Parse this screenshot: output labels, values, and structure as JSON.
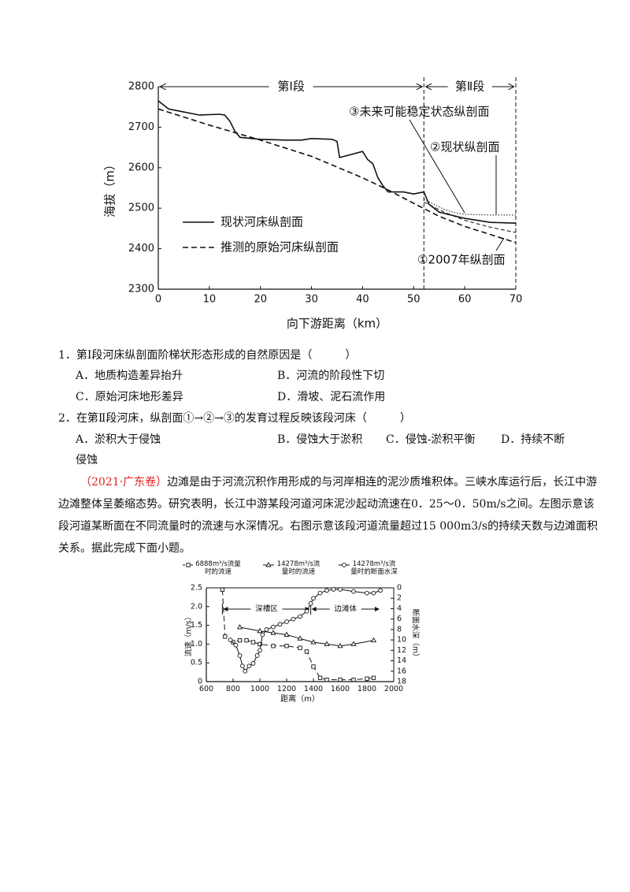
{
  "chart_data": [
    {
      "type": "line",
      "x_label": "向下游距离（km）",
      "y_label": "海拔（m）",
      "xlim": [
        0,
        70
      ],
      "xticks": [
        0,
        10,
        20,
        30,
        40,
        50,
        60,
        70
      ],
      "ylim": [
        2300,
        2800
      ],
      "yticks": [
        2300,
        2400,
        2500,
        2600,
        2700,
        2800
      ],
      "sections": [
        {
          "label": "第Ⅰ段",
          "from": 0,
          "to": 52
        },
        {
          "label": "第Ⅱ段",
          "from": 52,
          "to": 70
        }
      ],
      "series": [
        {
          "name": "现状河床纵剖面",
          "style": "solid",
          "color": "#111",
          "legend": true,
          "x": [
            0,
            1,
            2,
            4,
            6,
            8,
            12,
            13,
            14,
            15,
            16,
            20,
            25,
            28,
            30,
            34,
            35,
            35.5,
            37,
            40,
            41,
            42,
            43,
            44,
            45,
            48,
            50,
            52,
            53,
            55,
            60,
            65,
            70
          ],
          "values": [
            2765,
            2755,
            2745,
            2740,
            2735,
            2730,
            2732,
            2730,
            2715,
            2690,
            2675,
            2670,
            2668,
            2668,
            2672,
            2670,
            2665,
            2625,
            2630,
            2640,
            2620,
            2610,
            2575,
            2555,
            2540,
            2540,
            2535,
            2540,
            2510,
            2490,
            2475,
            2465,
            2463
          ]
        },
        {
          "name": "推测的原始河床纵剖面",
          "style": "dashed",
          "color": "#111",
          "legend": true,
          "x": [
            0,
            10,
            20,
            30,
            40,
            45,
            50,
            55,
            60,
            65,
            70
          ],
          "values": [
            2745,
            2705,
            2668,
            2628,
            2575,
            2545,
            2512,
            2480,
            2455,
            2435,
            2415
          ]
        },
        {
          "name": "①2007年纵剖面",
          "style": "thin-dashed",
          "color": "#111",
          "legend": false,
          "x": [
            52,
            56,
            60,
            65,
            70
          ],
          "values": [
            2515,
            2490,
            2470,
            2453,
            2440
          ]
        },
        {
          "name": "③未来可能稳定状态纵剖面",
          "style": "dotted",
          "color": "#111",
          "legend": false,
          "x": [
            52,
            56,
            58,
            60,
            65,
            70
          ],
          "values": [
            2522,
            2497,
            2489,
            2485,
            2483,
            2483
          ]
        }
      ],
      "annotations": [
        "②现状纵剖面"
      ]
    },
    {
      "type": "line",
      "x_label": "距离（m）",
      "y_label": "流速（m/s）",
      "y2_label": "断面水深（m）",
      "xlim": [
        600,
        2000
      ],
      "xticks": [
        600,
        800,
        1000,
        1200,
        1400,
        1600,
        1800,
        2000
      ],
      "ylim": [
        0,
        2.5
      ],
      "yticks": [
        0,
        0.5,
        {
          "value": 1,
          "label": "1.0"
        },
        1.5,
        {
          "value": 2,
          "label": "2.0"
        },
        2.5
      ],
      "y2lim": [
        0,
        18
      ],
      "y2ticks": [
        0,
        2,
        4,
        6,
        8,
        10,
        12,
        14,
        16,
        18
      ],
      "y2_inverted": true,
      "series": [
        {
          "name": "6888m³/s流量时的流速",
          "style": "dashed",
          "marker": "square",
          "color": "#111",
          "x": [
            720,
            740,
            800,
            850,
            900,
            950,
            1000,
            1100,
            1200,
            1300,
            1350,
            1400,
            1450,
            1500,
            1600,
            1700,
            1800,
            1850
          ],
          "values": [
            2.45,
            1.2,
            1.05,
            1.1,
            1.1,
            1.05,
            1.0,
            0.95,
            0.95,
            0.9,
            0.8,
            0.4,
            0.1,
            0.05,
            0.05,
            0.05,
            0.08,
            0.1
          ]
        },
        {
          "name": "14278m³/s流量时的流速",
          "style": "solid",
          "marker": "triangle",
          "color": "#111",
          "x": [
            850,
            1000,
            1100,
            1200,
            1300,
            1400,
            1500,
            1600,
            1700,
            1850
          ],
          "values": [
            1.45,
            1.35,
            1.3,
            1.25,
            1.15,
            1.05,
            1.0,
            0.95,
            1.0,
            1.1
          ]
        },
        {
          "name": "14278m³/s流量时的断面水深",
          "style": "solid",
          "marker": "circle",
          "color": "#111",
          "axis": "y2",
          "x": [
            780,
            820,
            850,
            870,
            890,
            920,
            950,
            980,
            1000,
            1020,
            1050,
            1100,
            1150,
            1200,
            1250,
            1300,
            1350,
            1380,
            1400,
            1450,
            1500,
            1550,
            1600,
            1700,
            1800,
            1850,
            1900
          ],
          "values": [
            10,
            11,
            13,
            15,
            16,
            15,
            14.5,
            13,
            12,
            9,
            8,
            7.5,
            7,
            6.5,
            6,
            5.5,
            4.5,
            3,
            2,
            1,
            0.5,
            0.3,
            0.3,
            0.7,
            1,
            1,
            0.5
          ]
        }
      ],
      "zones": [
        {
          "label": "深槽区",
          "from": 720,
          "to": 1380
        },
        {
          "label": "边滩体",
          "from": 1380,
          "to": 1900
        }
      ]
    }
  ],
  "questions": [
    {
      "stem": "1．第Ⅰ段河床纵剖面阶梯状形态形成的自然原因是（　　　）",
      "options": [
        "A．地质构造差异抬升",
        "B．河流的阶段性下切",
        "C．原始河床地形差异",
        "D．滑坡、泥石流作用"
      ]
    },
    {
      "stem": "2．在第Ⅱ段河床，纵剖面①→②→③的发育过程反映该段河床（　　　）",
      "options": [
        "A．淤积大于侵蚀",
        "B．侵蚀大于淤积",
        "C．侵蚀-淤积平衡",
        "D．持续不断侵蚀"
      ]
    }
  ],
  "passage": {
    "source": "（2021·广东卷）",
    "text": "边滩是由于河流沉积作用形成的与河岸相连的泥沙质堆积体。三峡水库运行后，长江中游边滩整体呈萎缩态势。研究表明，长江中游某段河道河床泥沙起动流速在0．25～0．50m/s之间。左图示意该段河道某断面在不同流量时的流速与水深情况。右图示意该段河道流量超过15 000m3/s的持续天数与边滩面积关系。据此完成下面小题。"
  }
}
